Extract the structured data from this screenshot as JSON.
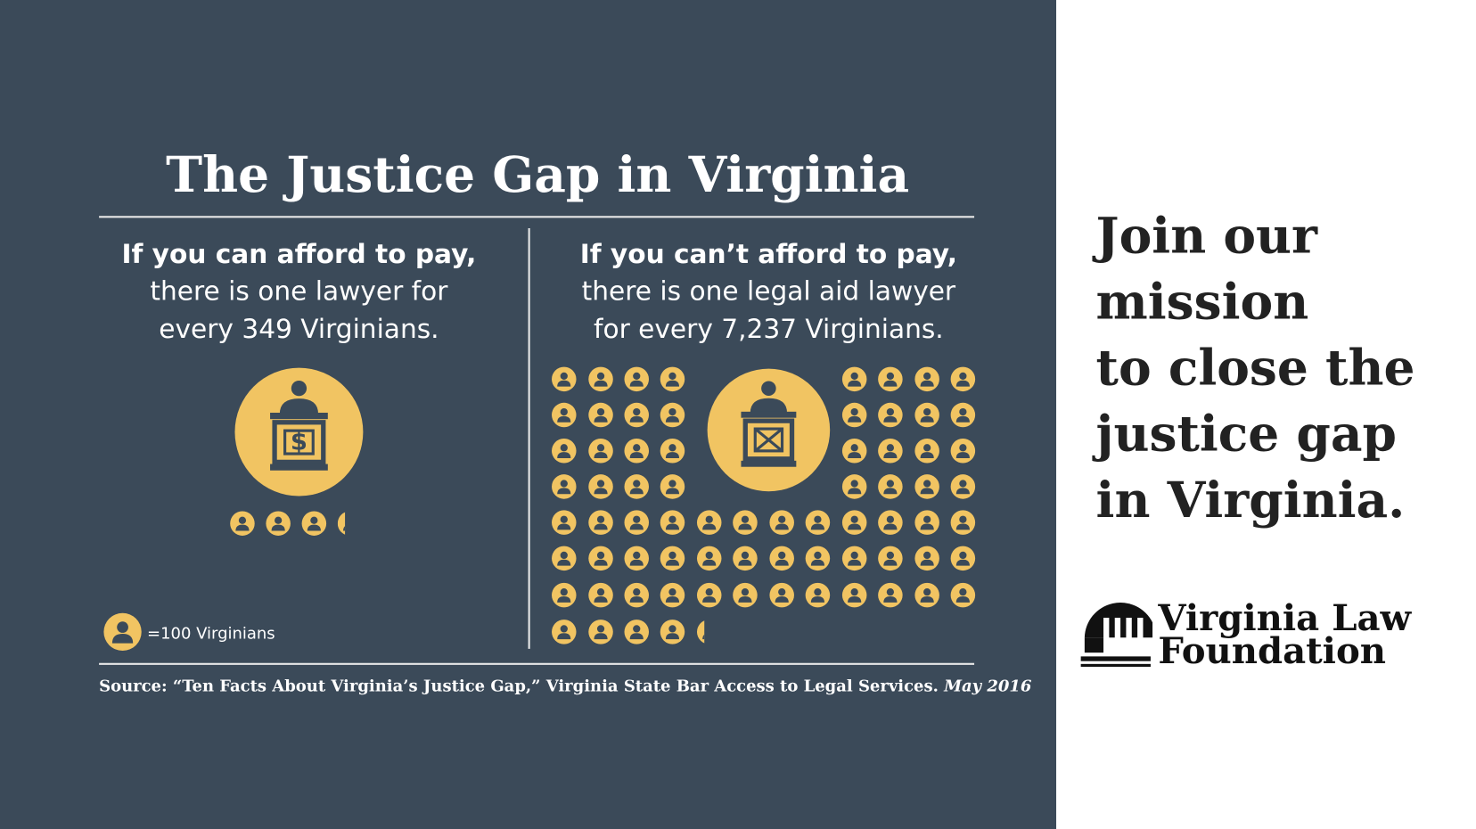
{
  "title": "The Justice Gap in Virginia",
  "left": {
    "heading": "If you can afford to pay,",
    "line1": "there is one lawyer for",
    "line2": "every 349 Virginians."
  },
  "right": {
    "heading": "If you can’t afford to pay,",
    "line1": "there is one legal aid lawyer",
    "line2": "for every 7,237 Virginians."
  },
  "legend": "=100 Virginians",
  "source": {
    "text": "Source: “Ten Facts About Virginia’s Justice Gap,” Virginia State Bar Access to Legal Services.",
    "date": "May 2016"
  },
  "aside": {
    "lines": [
      "Join our",
      "mission",
      "to close the",
      "justice gap",
      "in Virginia."
    ]
  },
  "logo": {
    "line1": "Virginia Law",
    "line2": "Foundation"
  }
}
